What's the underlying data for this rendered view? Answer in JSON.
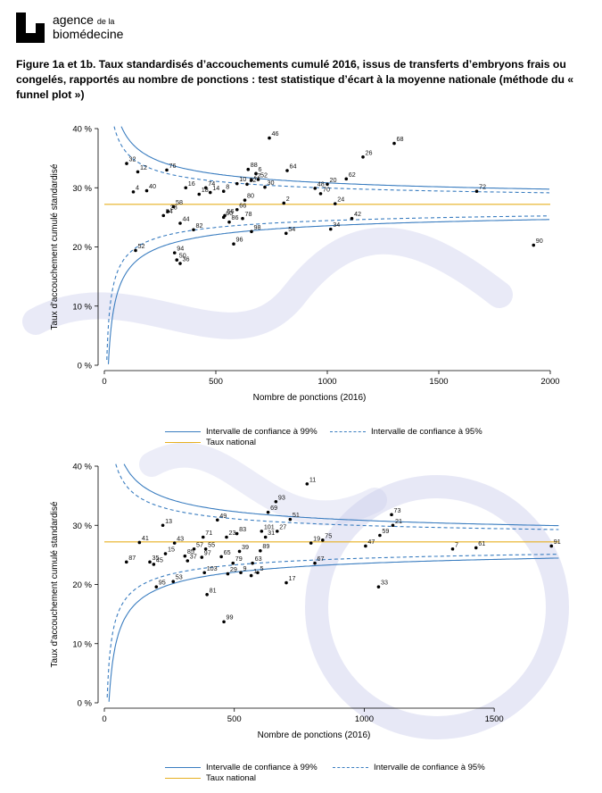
{
  "header": {
    "logo_line1": "agence",
    "logo_line1_small": "de la",
    "logo_line2": "biomédecine"
  },
  "caption": "Figure 1a et 1b. Taux standardisés d’accouchements cumulé 2016, issus de transferts d’embryons frais ou congelés, rapportés au nombre de ponctions : test statistique d’écart à la moyenne nationale (méthode du « funnel plot »)",
  "colors": {
    "ci99": "#3a7dc0",
    "ci95": "#3a7dc0",
    "national": "#e7b020",
    "points": "#000000"
  },
  "chart_data": [
    {
      "type": "scatter",
      "xlabel": "Nombre de ponctions (2016)",
      "ylabel": "Taux d'accouchement cumulé standardisé",
      "xlim": [
        0,
        2000
      ],
      "ylim": [
        0,
        40
      ],
      "xticks": [
        "0",
        "500",
        "1000",
        "1500",
        "2000"
      ],
      "yticks": [
        "0 %",
        "10 %",
        "20 %",
        "30 %",
        "40 %"
      ],
      "national_rate": 27.2,
      "legend": {
        "ci99": "Intervalle de confiance à 99%",
        "ci95": "Intervalle de confiance à 95%",
        "national": "Taux national"
      },
      "points": [
        {
          "label": "46",
          "x": 740,
          "y": 38.4
        },
        {
          "label": "68",
          "x": 1300,
          "y": 37.5
        },
        {
          "label": "26",
          "x": 1160,
          "y": 35.2
        },
        {
          "label": "32",
          "x": 100,
          "y": 34.1
        },
        {
          "label": "76",
          "x": 280,
          "y": 33.0
        },
        {
          "label": "12",
          "x": 150,
          "y": 32.7
        },
        {
          "label": "88",
          "x": 645,
          "y": 33.1
        },
        {
          "label": "64",
          "x": 820,
          "y": 32.9
        },
        {
          "label": "6",
          "x": 680,
          "y": 32.4
        },
        {
          "label": "62",
          "x": 1085,
          "y": 31.5
        },
        {
          "label": "10",
          "x": 595,
          "y": 30.7
        },
        {
          "label": "22",
          "x": 660,
          "y": 31.3
        },
        {
          "label": "20",
          "x": 1000,
          "y": 30.6
        },
        {
          "label": "16",
          "x": 365,
          "y": 30.0
        },
        {
          "label": "74",
          "x": 455,
          "y": 30.0
        },
        {
          "label": "52",
          "x": 690,
          "y": 31.4
        },
        {
          "label": "82",
          "x": 640,
          "y": 30.6
        },
        {
          "label": "30",
          "x": 720,
          "y": 30.1
        },
        {
          "label": "48",
          "x": 945,
          "y": 29.9
        },
        {
          "label": "72",
          "x": 1670,
          "y": 29.4
        },
        {
          "label": "4",
          "x": 130,
          "y": 29.3
        },
        {
          "label": "40",
          "x": 190,
          "y": 29.5
        },
        {
          "label": "14",
          "x": 475,
          "y": 29.2
        },
        {
          "label": "8",
          "x": 535,
          "y": 29.4
        },
        {
          "label": "70",
          "x": 970,
          "y": 29.0
        },
        {
          "label": "18",
          "x": 425,
          "y": 28.9
        },
        {
          "label": "80",
          "x": 630,
          "y": 27.9
        },
        {
          "label": "2",
          "x": 805,
          "y": 27.4
        },
        {
          "label": "24",
          "x": 1035,
          "y": 27.3
        },
        {
          "label": "58",
          "x": 310,
          "y": 26.8
        },
        {
          "label": "28",
          "x": 285,
          "y": 26.0
        },
        {
          "label": "84",
          "x": 265,
          "y": 25.3
        },
        {
          "label": "56",
          "x": 540,
          "y": 25.3
        },
        {
          "label": "60",
          "x": 535,
          "y": 25.0
        },
        {
          "label": "66",
          "x": 595,
          "y": 26.3
        },
        {
          "label": "78",
          "x": 620,
          "y": 24.8
        },
        {
          "label": "42",
          "x": 1110,
          "y": 24.8
        },
        {
          "label": "44",
          "x": 340,
          "y": 24.0
        },
        {
          "label": "86",
          "x": 560,
          "y": 24.2
        },
        {
          "label": "82",
          "x": 400,
          "y": 22.9
        },
        {
          "label": "98",
          "x": 660,
          "y": 22.6
        },
        {
          "label": "54",
          "x": 815,
          "y": 22.3
        },
        {
          "label": "34",
          "x": 1015,
          "y": 23.0
        },
        {
          "label": "96",
          "x": 580,
          "y": 20.5
        },
        {
          "label": "90",
          "x": 1925,
          "y": 20.3
        },
        {
          "label": "52",
          "x": 140,
          "y": 19.4
        },
        {
          "label": "94",
          "x": 315,
          "y": 19.0
        },
        {
          "label": "50",
          "x": 325,
          "y": 17.8
        },
        {
          "label": "36",
          "x": 340,
          "y": 17.2
        }
      ]
    },
    {
      "type": "scatter",
      "xlabel": "Nombre de ponctions (2016)",
      "ylabel": "Taux d'accouchement cumulé standardisé",
      "xlim": [
        0,
        1750
      ],
      "ylim": [
        0,
        40
      ],
      "xticks": [
        "0",
        "500",
        "1000",
        "1500"
      ],
      "yticks": [
        "0 %",
        "10 %",
        "20 %",
        "30 %",
        "40 %"
      ],
      "national_rate": 27.2,
      "legend": {
        "ci99": "Intervalle de confiance à 99%",
        "ci95": "Intervalle de confiance à 95%",
        "national": "Taux national"
      },
      "points": [
        {
          "label": "11",
          "x": 780,
          "y": 37.0
        },
        {
          "label": "93",
          "x": 660,
          "y": 34.0
        },
        {
          "label": "73",
          "x": 1105,
          "y": 31.8
        },
        {
          "label": "69",
          "x": 630,
          "y": 32.2
        },
        {
          "label": "51",
          "x": 715,
          "y": 31.0
        },
        {
          "label": "49",
          "x": 435,
          "y": 30.9
        },
        {
          "label": "13",
          "x": 225,
          "y": 30.0
        },
        {
          "label": "21",
          "x": 1110,
          "y": 30.0
        },
        {
          "label": "101",
          "x": 605,
          "y": 29.0
        },
        {
          "label": "27",
          "x": 665,
          "y": 29.0
        },
        {
          "label": "83",
          "x": 510,
          "y": 28.6
        },
        {
          "label": "71",
          "x": 380,
          "y": 28.0
        },
        {
          "label": "23",
          "x": 470,
          "y": 28.0
        },
        {
          "label": "31",
          "x": 620,
          "y": 28.0
        },
        {
          "label": "59",
          "x": 1060,
          "y": 28.3
        },
        {
          "label": "75",
          "x": 840,
          "y": 27.5
        },
        {
          "label": "41",
          "x": 135,
          "y": 27.1
        },
        {
          "label": "43",
          "x": 270,
          "y": 27.0
        },
        {
          "label": "19",
          "x": 795,
          "y": 27.0
        },
        {
          "label": "47",
          "x": 1005,
          "y": 26.5
        },
        {
          "label": "7",
          "x": 1340,
          "y": 26.0
        },
        {
          "label": "61",
          "x": 1430,
          "y": 26.2
        },
        {
          "label": "91",
          "x": 1720,
          "y": 26.5
        },
        {
          "label": "57",
          "x": 345,
          "y": 26.0
        },
        {
          "label": "55",
          "x": 390,
          "y": 26.0
        },
        {
          "label": "15",
          "x": 235,
          "y": 25.2
        },
        {
          "label": "85",
          "x": 310,
          "y": 24.8
        },
        {
          "label": "97",
          "x": 375,
          "y": 24.6
        },
        {
          "label": "39",
          "x": 520,
          "y": 25.6
        },
        {
          "label": "89",
          "x": 600,
          "y": 25.7
        },
        {
          "label": "65",
          "x": 450,
          "y": 24.7
        },
        {
          "label": "87",
          "x": 85,
          "y": 23.8
        },
        {
          "label": "35",
          "x": 175,
          "y": 23.8
        },
        {
          "label": "45",
          "x": 190,
          "y": 23.4
        },
        {
          "label": "37",
          "x": 320,
          "y": 24.0
        },
        {
          "label": "79",
          "x": 495,
          "y": 23.6
        },
        {
          "label": "63",
          "x": 570,
          "y": 23.6
        },
        {
          "label": "67",
          "x": 810,
          "y": 23.6
        },
        {
          "label": "9",
          "x": 525,
          "y": 22.0
        },
        {
          "label": "5",
          "x": 590,
          "y": 22.0
        },
        {
          "label": "103",
          "x": 385,
          "y": 22.0
        },
        {
          "label": "29",
          "x": 475,
          "y": 21.8
        },
        {
          "label": "1",
          "x": 565,
          "y": 21.5
        },
        {
          "label": "53",
          "x": 265,
          "y": 20.5
        },
        {
          "label": "95",
          "x": 200,
          "y": 19.6
        },
        {
          "label": "17",
          "x": 700,
          "y": 20.3
        },
        {
          "label": "33",
          "x": 1055,
          "y": 19.6
        },
        {
          "label": "81",
          "x": 395,
          "y": 18.3
        },
        {
          "label": "99",
          "x": 460,
          "y": 13.7
        }
      ]
    }
  ]
}
